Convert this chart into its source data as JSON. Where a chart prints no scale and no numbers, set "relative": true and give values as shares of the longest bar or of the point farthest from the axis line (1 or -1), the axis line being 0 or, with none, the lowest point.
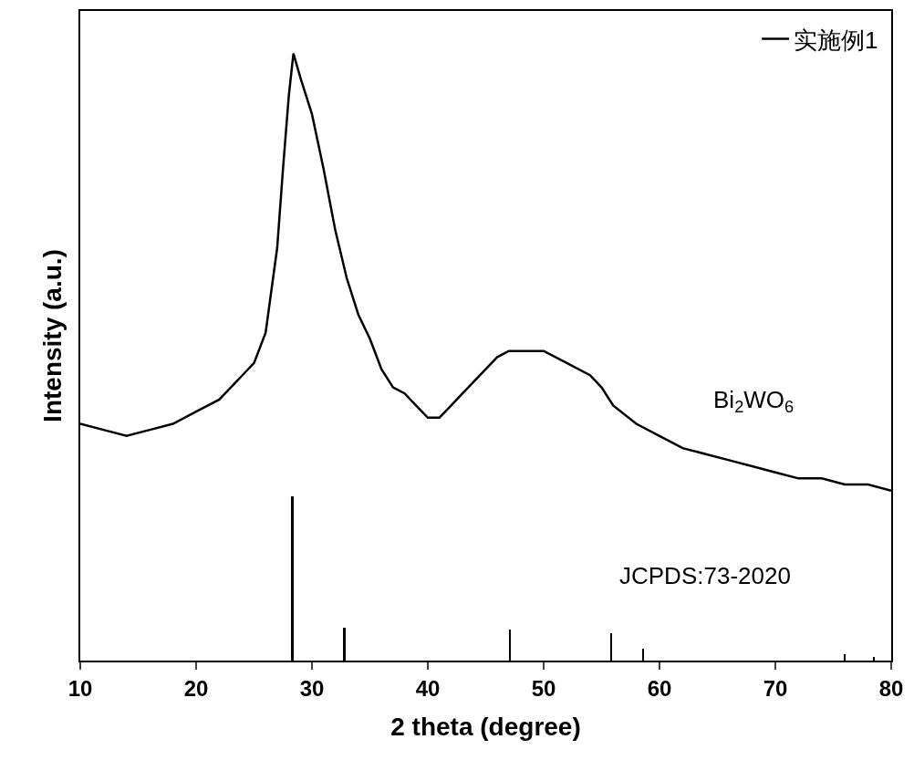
{
  "chart_data": {
    "type": "line",
    "relative": true,
    "xlabel": "2 theta (degree)",
    "ylabel": "Intensity (a.u.)",
    "xlim": [
      10,
      80
    ],
    "xticks": [
      10,
      20,
      30,
      40,
      50,
      60,
      70,
      80
    ],
    "legend": "top right",
    "marker": "none",
    "line_style": "solid",
    "series": [
      {
        "name": "实施例1",
        "color": "#000000",
        "x": [
          10,
          12,
          14,
          16,
          18,
          20,
          22,
          24,
          25,
          26,
          27,
          27.5,
          28,
          28.4,
          29,
          30,
          31,
          32,
          33,
          34,
          35,
          36,
          37,
          38,
          39,
          40,
          41,
          42,
          43,
          44,
          45,
          46,
          47,
          48,
          49,
          50,
          52,
          54,
          55,
          56,
          58,
          60,
          62,
          64,
          66,
          68,
          70,
          72,
          74,
          76,
          78,
          80
        ],
        "values": [
          0.39,
          0.38,
          0.37,
          0.38,
          0.39,
          0.41,
          0.43,
          0.47,
          0.49,
          0.54,
          0.68,
          0.81,
          0.93,
          1,
          0.96,
          0.9,
          0.81,
          0.71,
          0.63,
          0.57,
          0.53,
          0.48,
          0.45,
          0.44,
          0.42,
          0.4,
          0.4,
          0.42,
          0.44,
          0.46,
          0.48,
          0.5,
          0.51,
          0.51,
          0.51,
          0.51,
          0.49,
          0.47,
          0.45,
          0.42,
          0.39,
          0.37,
          0.35,
          0.34,
          0.33,
          0.32,
          0.31,
          0.3,
          0.3,
          0.29,
          0.29,
          0.28
        ]
      },
      {
        "type": "bar",
        "color": "#000000",
        "x": [
          28.3,
          32.8,
          47.1,
          55.8,
          58.6,
          76.0,
          78.5
        ],
        "values": [
          0.27,
          0.054,
          0.051,
          0.045,
          0.02,
          0.01,
          0.006
        ]
      }
    ],
    "annotations": [
      "Bi$_{2}$WO$_{6}$",
      "JCPDS:73-2020"
    ]
  }
}
